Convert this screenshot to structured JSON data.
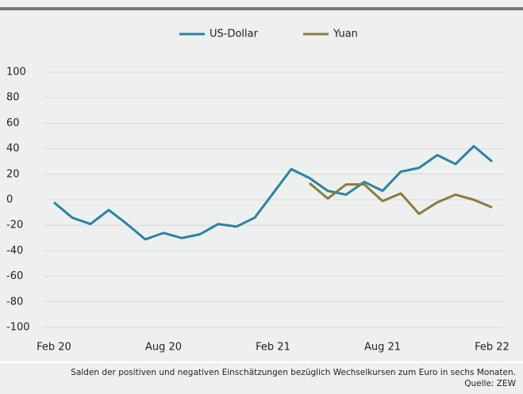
{
  "chart_data": {
    "type": "line",
    "categories": [
      "Feb 20",
      null,
      null,
      null,
      null,
      null,
      "Aug 20",
      null,
      null,
      null,
      null,
      null,
      "Feb 21",
      null,
      null,
      null,
      null,
      null,
      "Aug 21",
      null,
      null,
      null,
      null,
      null,
      "Feb 22"
    ],
    "series": [
      {
        "name": "US-Dollar",
        "color": "#2b82a6",
        "values": [
          -2,
          -14,
          -19,
          -8,
          -19,
          -31,
          -26,
          -30,
          -27,
          -19,
          -21,
          -14,
          5,
          24,
          17,
          7,
          4,
          14,
          7,
          22,
          25,
          35,
          28,
          42,
          30
        ]
      },
      {
        "name": "Yuan",
        "color": "#8c7b3d",
        "values": [
          null,
          null,
          null,
          null,
          null,
          null,
          null,
          null,
          null,
          null,
          null,
          null,
          null,
          null,
          13,
          1,
          12,
          12,
          -1,
          5,
          -11,
          -2,
          4,
          0,
          -6
        ]
      }
    ],
    "ylim": [
      -100,
      100
    ],
    "yticks": [
      -100,
      -80,
      -60,
      -40,
      -20,
      0,
      20,
      40,
      60,
      80,
      100
    ],
    "grid": true,
    "caption": "Salden der positiven und negativen Einschätzungen bezüglich Wechselkursen zum Euro in sechs Monaten.",
    "source": "Quelle: ZEW"
  }
}
